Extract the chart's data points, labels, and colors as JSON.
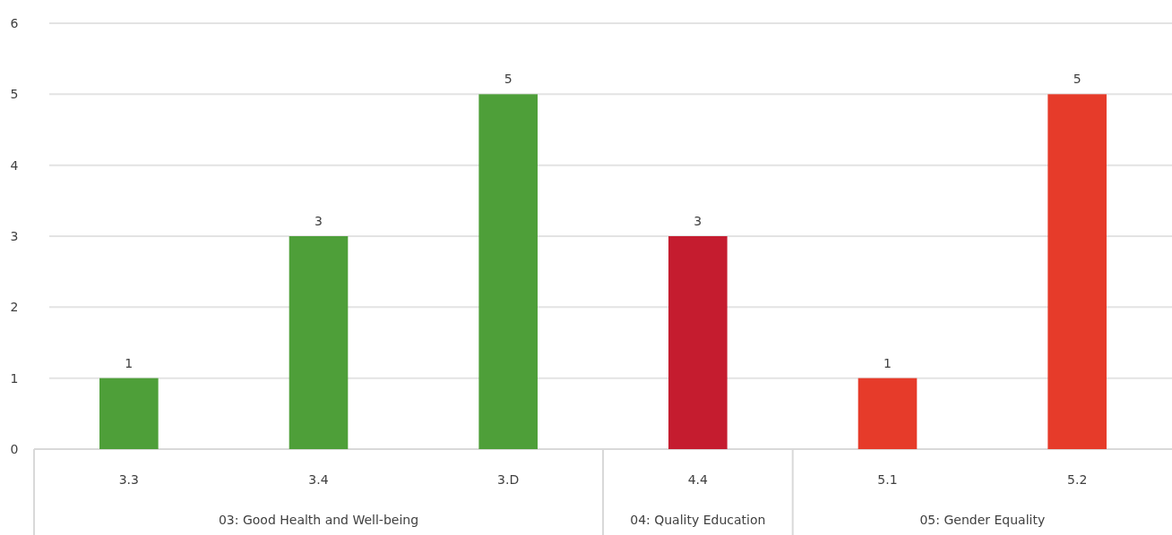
{
  "chart_data": {
    "type": "bar",
    "categories": [
      "3.3",
      "3.4",
      "3.D",
      "4.4",
      "5.1",
      "5.2"
    ],
    "values": [
      1,
      3,
      5,
      3,
      1,
      5
    ],
    "colors": [
      "#4e9f39",
      "#4e9f39",
      "#4e9f39",
      "#c51c2f",
      "#e63b2a",
      "#e63b2a"
    ],
    "ylim": [
      0,
      6
    ],
    "yticks": [
      0,
      1,
      2,
      3,
      4,
      5,
      6
    ],
    "grid": "y",
    "data_labels": true,
    "annotations": [
      "03: Good Health and Well-being",
      "04: Quality Education",
      "05: Gender Equality"
    ]
  }
}
